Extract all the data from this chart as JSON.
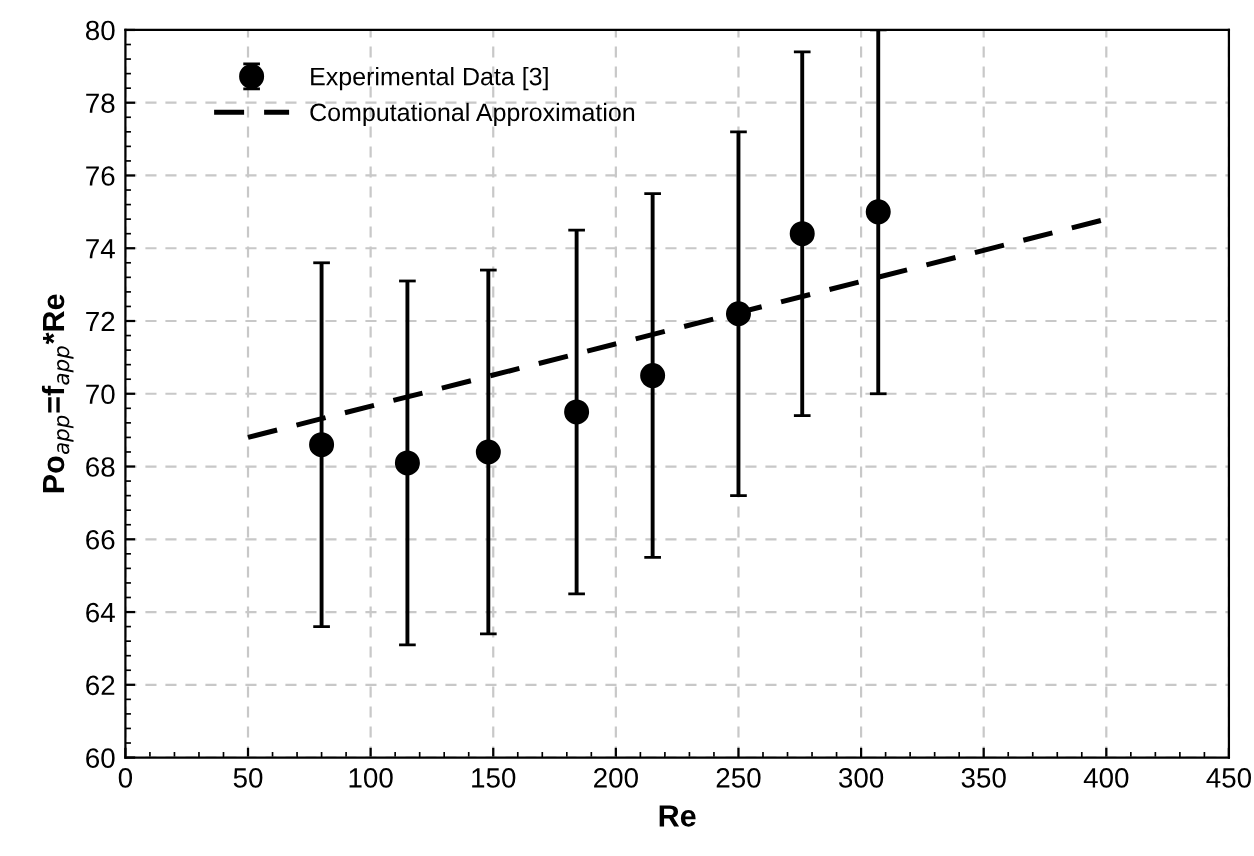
{
  "chart_data": {
    "type": "scatter",
    "xlabel": "Re",
    "ylabel": "Po$_{app}$=f$_{app}$*Re",
    "xlim": [
      0,
      450
    ],
    "ylim": [
      60,
      80
    ],
    "xticks": [
      0,
      50,
      100,
      150,
      200,
      250,
      300,
      350,
      400,
      450
    ],
    "yticks": [
      60,
      62,
      64,
      66,
      68,
      70,
      72,
      74,
      76,
      78,
      80
    ],
    "grid": true,
    "legend": "top left",
    "series": [
      {
        "name": "Experimental Data [3]",
        "color": "#000000",
        "marker": "circle",
        "x": [
          80,
          115,
          148,
          184,
          215,
          250,
          276,
          307
        ],
        "values": [
          68.6,
          68.1,
          68.4,
          69.5,
          70.5,
          72.2,
          74.4,
          75.0
        ],
        "errors": [
          5,
          5,
          5,
          5,
          5,
          5,
          5,
          5
        ]
      },
      {
        "name": "Computational Approximation",
        "type": "line",
        "color": "#000000",
        "line_style": "dashed",
        "marker": "none",
        "x": [
          50,
          400
        ],
        "values": [
          68.8,
          74.8
        ]
      }
    ]
  }
}
